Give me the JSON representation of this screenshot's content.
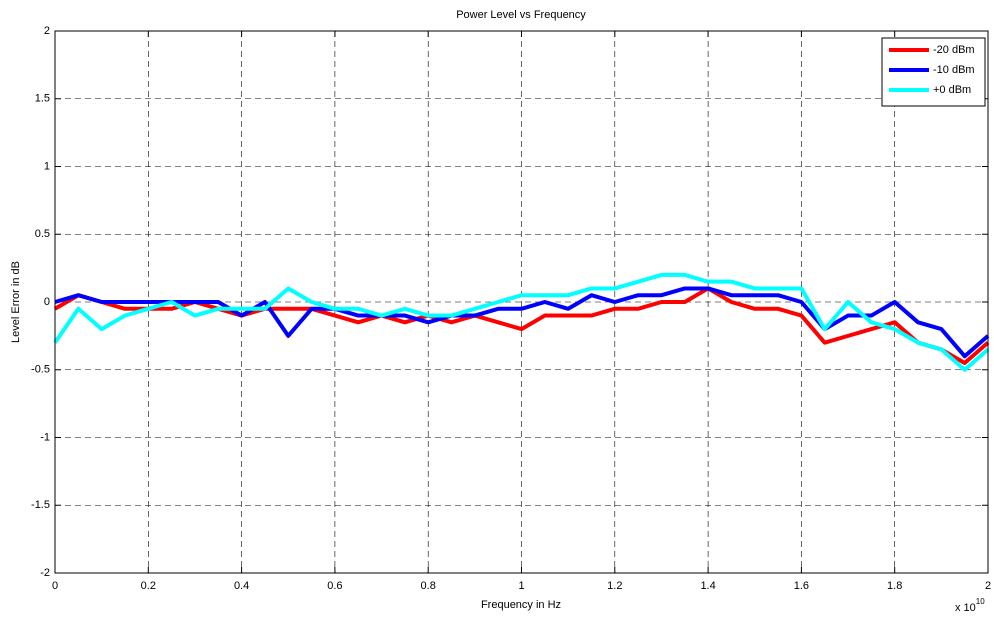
{
  "chart_data": {
    "type": "line",
    "title": "Power Level vs Frequency",
    "x_label": "Frequency in Hz",
    "y_label": "Level Error in dB",
    "x_multiplier": "x 10",
    "x_multiplier_exponent": "10",
    "x": [
      0,
      0.05,
      0.1,
      0.15,
      0.2,
      0.25,
      0.3,
      0.35,
      0.4,
      0.45,
      0.5,
      0.55,
      0.6,
      0.65,
      0.7,
      0.75,
      0.8,
      0.85,
      0.9,
      0.95,
      1.0,
      1.05,
      1.1,
      1.15,
      1.2,
      1.25,
      1.3,
      1.35,
      1.4,
      1.45,
      1.5,
      1.55,
      1.6,
      1.65,
      1.7,
      1.75,
      1.8,
      1.85,
      1.9,
      1.95,
      2.0
    ],
    "series": [
      {
        "name": "-20 dBm",
        "color": "#ff0000",
        "values": [
          -0.05,
          0.05,
          0,
          -0.05,
          -0.05,
          -0.05,
          0,
          -0.05,
          -0.1,
          -0.05,
          -0.05,
          -0.05,
          -0.1,
          -0.15,
          -0.1,
          -0.15,
          -0.1,
          -0.15,
          -0.1,
          -0.15,
          -0.2,
          -0.1,
          -0.1,
          -0.1,
          -0.05,
          -0.05,
          0,
          0,
          0.1,
          0,
          -0.05,
          -0.05,
          -0.1,
          -0.3,
          -0.25,
          -0.2,
          -0.15,
          -0.3,
          -0.35,
          -0.45,
          -0.3
        ]
      },
      {
        "name": "-10 dBm",
        "color": "#0000ff",
        "values": [
          0,
          0.05,
          0,
          0,
          0,
          0,
          0,
          0,
          -0.1,
          0,
          -0.25,
          -0.05,
          -0.05,
          -0.1,
          -0.1,
          -0.1,
          -0.15,
          -0.1,
          -0.1,
          -0.05,
          -0.05,
          0,
          -0.05,
          0.05,
          0,
          0.05,
          0.05,
          0.1,
          0.1,
          0.05,
          0.05,
          0.05,
          0,
          -0.2,
          -0.1,
          -0.1,
          0,
          -0.15,
          -0.2,
          -0.4,
          -0.25
        ]
      },
      {
        "name": "+0 dBm",
        "color": "#00ffff",
        "values": [
          -0.3,
          -0.05,
          -0.2,
          -0.1,
          -0.05,
          0,
          -0.1,
          -0.05,
          -0.05,
          -0.05,
          0.1,
          0,
          -0.05,
          -0.05,
          -0.1,
          -0.05,
          -0.1,
          -0.1,
          -0.05,
          0,
          0.05,
          0.05,
          0.05,
          0.1,
          0.1,
          0.15,
          0.2,
          0.2,
          0.15,
          0.15,
          0.1,
          0.1,
          0.1,
          -0.2,
          0,
          -0.15,
          -0.2,
          -0.3,
          -0.35,
          -0.5,
          -0.35
        ]
      }
    ],
    "xlim": [
      0,
      2
    ],
    "xticks": [
      0,
      0.2,
      0.4,
      0.6,
      0.8,
      1,
      1.2,
      1.4,
      1.6,
      1.8,
      2
    ],
    "ylim": [
      -2,
      2
    ],
    "yticks": [
      -2,
      -1.5,
      -1,
      -0.5,
      0,
      0.5,
      1,
      1.5,
      2
    ],
    "grid": true,
    "legend": "northeast"
  }
}
